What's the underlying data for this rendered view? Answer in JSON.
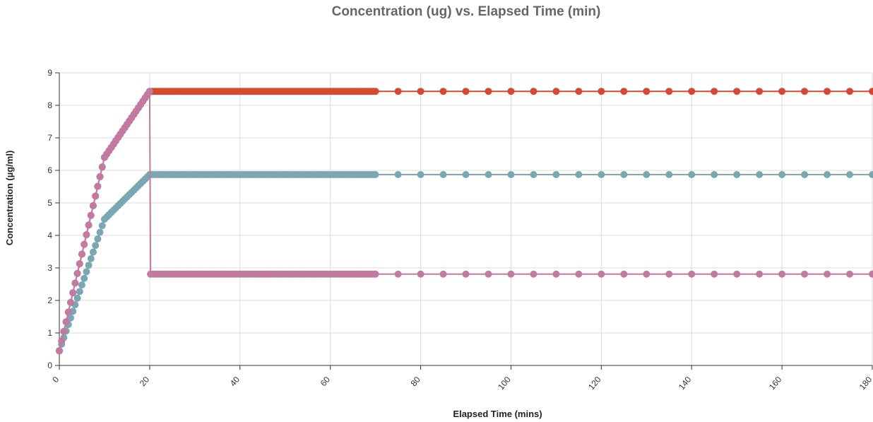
{
  "chart_data": {
    "type": "line",
    "title": "Concentration (ug) vs. Elapsed Time (min)",
    "xlabel": "Elapsed Time (mins)",
    "ylabel": "Concentration (µg/ml)",
    "xlim": [
      0,
      180
    ],
    "ylim": [
      0,
      9
    ],
    "xticks": [
      "0",
      "20",
      "40",
      "60",
      "80",
      "100",
      "120",
      "140",
      "160",
      "180"
    ],
    "yticks": [
      "0",
      "1",
      "2",
      "3",
      "4",
      "5",
      "6",
      "7",
      "8",
      "9"
    ],
    "grid": true,
    "legend": "none",
    "series": [
      {
        "color": "#d34a2e",
        "x": [
          0,
          10,
          20,
          70,
          75,
          80,
          85,
          90,
          95,
          100,
          105,
          110,
          115,
          120,
          125,
          130,
          135,
          140,
          145,
          150,
          155,
          160,
          165,
          170,
          175,
          180
        ],
        "y": [
          0.45,
          6.4,
          8.43,
          8.43,
          8.43,
          8.43,
          8.43,
          8.43,
          8.43,
          8.43,
          8.43,
          8.43,
          8.43,
          8.43,
          8.43,
          8.43,
          8.43,
          8.43,
          8.43,
          8.43,
          8.43,
          8.43,
          8.43,
          8.43,
          8.43,
          8.43
        ]
      },
      {
        "color": "#7aa7b1",
        "x": [
          0,
          10,
          20,
          70,
          75,
          80,
          85,
          90,
          95,
          100,
          105,
          110,
          115,
          120,
          125,
          130,
          135,
          140,
          145,
          150,
          155,
          160,
          165,
          170,
          175,
          180
        ],
        "y": [
          0.45,
          4.5,
          5.87,
          5.87,
          5.87,
          5.87,
          5.87,
          5.87,
          5.87,
          5.87,
          5.87,
          5.87,
          5.87,
          5.87,
          5.87,
          5.87,
          5.87,
          5.87,
          5.87,
          5.87,
          5.87,
          5.87,
          5.87,
          5.87,
          5.87,
          5.87
        ]
      },
      {
        "color": "#c27aa0",
        "x": [
          0,
          10,
          20,
          20.2,
          70,
          75,
          80,
          85,
          90,
          95,
          100,
          105,
          110,
          115,
          120,
          125,
          130,
          135,
          140,
          145,
          150,
          155,
          160,
          165,
          170,
          175,
          180
        ],
        "y": [
          0.45,
          6.4,
          8.43,
          2.81,
          2.81,
          2.81,
          2.81,
          2.81,
          2.81,
          2.81,
          2.81,
          2.81,
          2.81,
          2.81,
          2.81,
          2.81,
          2.81,
          2.81,
          2.81,
          2.81,
          2.81,
          2.81,
          2.81,
          2.81,
          2.81,
          2.81,
          2.81
        ]
      }
    ]
  }
}
